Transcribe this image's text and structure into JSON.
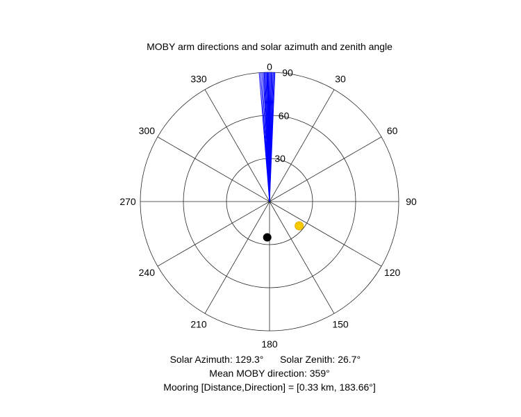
{
  "chart_data": {
    "type": "polar",
    "title": "MOBY arm directions and solar azimuth and zenith angle",
    "orientation": "0 at top, clockwise",
    "angle_ticks": [
      "0",
      "30",
      "60",
      "90",
      "120",
      "150",
      "180",
      "210",
      "240",
      "270",
      "300",
      "330"
    ],
    "radial_ticks": [
      "30",
      "60",
      "90"
    ],
    "rlim": [
      0,
      90
    ],
    "grid": true,
    "series": [
      {
        "marker": "line",
        "color": "#0000ff",
        "radius": 90,
        "directions_deg": [
          355.4,
          356.0,
          356.6,
          357.2,
          357.6,
          358.0,
          358.4,
          358.8,
          359.0,
          359.3,
          359.6,
          0.0,
          0.4,
          0.8,
          1.2,
          1.6,
          2.0,
          2.4
        ]
      },
      {
        "marker": "sun",
        "color": "#ffd700",
        "edge_color": "#e0a800",
        "azimuth_deg": 129.3,
        "zenith_deg": 26.7
      },
      {
        "marker": "dot",
        "color": "#000000",
        "azimuth_deg": 183.66,
        "radius": 25
      }
    ],
    "footer": {
      "solar_azimuth": "Solar Azimuth: 129.3°",
      "solar_zenith": "Solar Zenith: 26.7°",
      "mean_direction": "Mean MOBY direction: 359°",
      "mooring": "Mooring [Distance,Direction] = [0.33 km, 183.66°]"
    }
  }
}
